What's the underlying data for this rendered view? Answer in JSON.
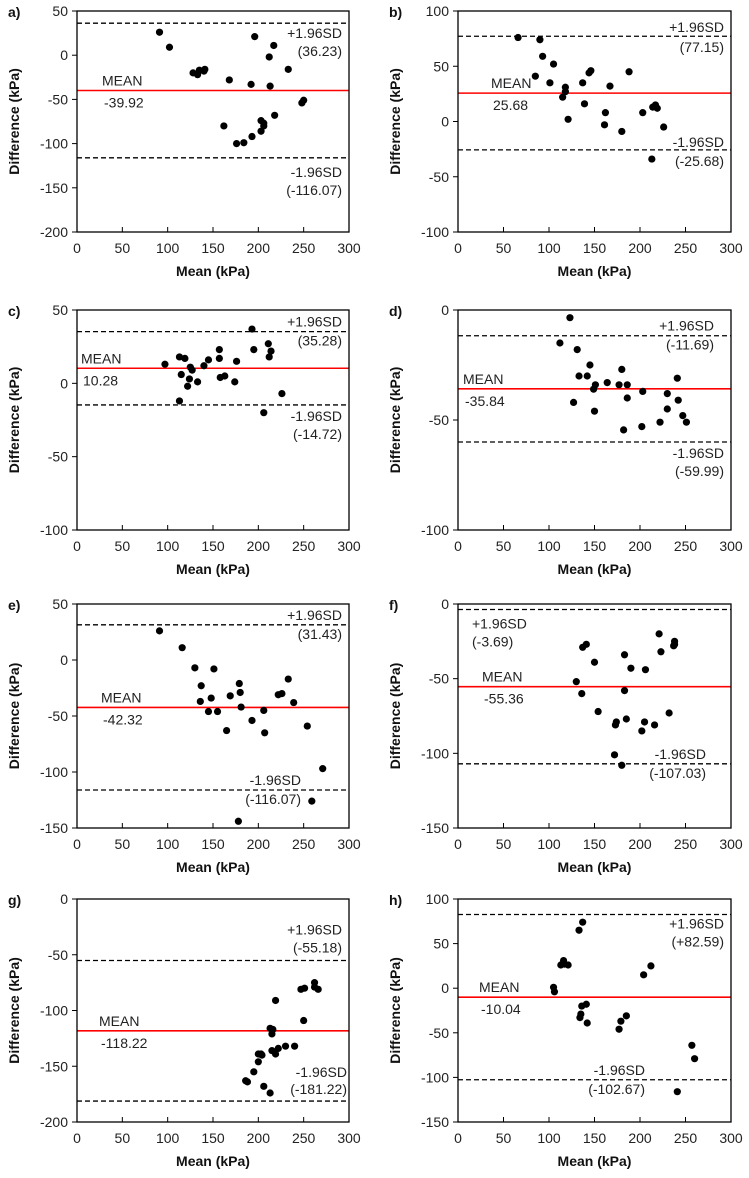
{
  "chart_data": [
    {
      "panel": "a)",
      "type": "scatter",
      "xlabel": "Mean (kPa)",
      "ylabel": "Difference (kPa)",
      "xlim": [
        0,
        300
      ],
      "ylim": [
        -200,
        50
      ],
      "xticks": [
        "0",
        "50",
        "100",
        "150",
        "200",
        "250",
        "300"
      ],
      "yticks": [
        "50",
        "0",
        "-50",
        "-100",
        "-150",
        "-200"
      ],
      "ytick_values": [
        50,
        0,
        -50,
        -100,
        -150,
        -200
      ],
      "mean": -39.92,
      "upper_loa": 36.23,
      "lower_loa": -116.07,
      "mean_label": "MEAN",
      "mean_text": "-39.92",
      "upper_label": "+1.96SD",
      "upper_text": "(36.23)",
      "lower_label": "-1.96SD",
      "lower_text": "(-116.07)",
      "points": [
        [
          91,
          26
        ],
        [
          102,
          9
        ],
        [
          128,
          -20
        ],
        [
          133,
          -22
        ],
        [
          135,
          -17
        ],
        [
          140,
          -18
        ],
        [
          141,
          -16
        ],
        [
          168,
          -28
        ],
        [
          162,
          -80
        ],
        [
          176,
          -100
        ],
        [
          184,
          -99
        ],
        [
          193,
          -92
        ],
        [
          192,
          -33
        ],
        [
          196,
          21
        ],
        [
          203,
          -74
        ],
        [
          203,
          -86
        ],
        [
          206,
          -77
        ],
        [
          206,
          -80
        ],
        [
          212,
          -2
        ],
        [
          213,
          -35
        ],
        [
          217,
          11
        ],
        [
          218,
          -68
        ],
        [
          233,
          -16
        ],
        [
          248,
          -54
        ],
        [
          250,
          -51
        ]
      ]
    },
    {
      "panel": "b)",
      "type": "scatter",
      "xlabel": "Mean (kPa)",
      "ylabel": "Difference (kPa)",
      "xlim": [
        0,
        300
      ],
      "ylim": [
        -100,
        100
      ],
      "xticks": [
        "0",
        "50",
        "100",
        "150",
        "200",
        "250",
        "300"
      ],
      "yticks": [
        "100",
        "50",
        "0",
        "-50",
        "-100"
      ],
      "ytick_values": [
        100,
        50,
        0,
        -50,
        -100
      ],
      "mean": 25.68,
      "upper_loa": 77.15,
      "lower_loa": -25.68,
      "mean_label": "MEAN",
      "mean_text": "25.68",
      "upper_label": "+1.96SD",
      "upper_text": "(77.15)",
      "lower_label": "-1.96SD",
      "lower_text": "(-25.68)",
      "points": [
        [
          66,
          76
        ],
        [
          90,
          74
        ],
        [
          93,
          59
        ],
        [
          85,
          41
        ],
        [
          101,
          35
        ],
        [
          105,
          52
        ],
        [
          115,
          22
        ],
        [
          118,
          31
        ],
        [
          118,
          27
        ],
        [
          121,
          2
        ],
        [
          137,
          35
        ],
        [
          139,
          16
        ],
        [
          144,
          44
        ],
        [
          146,
          46
        ],
        [
          162,
          8
        ],
        [
          161,
          -3
        ],
        [
          167,
          32
        ],
        [
          180,
          -9
        ],
        [
          188,
          45
        ],
        [
          203,
          8
        ],
        [
          214,
          13
        ],
        [
          217,
          15
        ],
        [
          219,
          12
        ],
        [
          213,
          -34
        ],
        [
          226,
          -5
        ]
      ]
    },
    {
      "panel": "c)",
      "type": "scatter",
      "xlabel": "Mean (kPa)",
      "ylabel": "Difference (kPa)",
      "xlim": [
        0,
        300
      ],
      "ylim": [
        -100,
        50
      ],
      "xticks": [
        "0",
        "50",
        "100",
        "150",
        "200",
        "250",
        "300"
      ],
      "yticks": [
        "50",
        "0",
        "-50",
        "-100"
      ],
      "ytick_values": [
        50,
        0,
        -50,
        -100
      ],
      "mean": 10.28,
      "upper_loa": 35.28,
      "lower_loa": -14.72,
      "mean_label": "MEAN",
      "mean_text": "10.28",
      "upper_label": "+1.96SD",
      "upper_text": "(35.28)",
      "lower_label": "-1.96SD",
      "lower_text": "(-14.72)",
      "points": [
        [
          97,
          13
        ],
        [
          113,
          18
        ],
        [
          115,
          6
        ],
        [
          119,
          17
        ],
        [
          113,
          -12
        ],
        [
          122,
          -2
        ],
        [
          124,
          3
        ],
        [
          125,
          11
        ],
        [
          127,
          9
        ],
        [
          133,
          1
        ],
        [
          140,
          12
        ],
        [
          145,
          16
        ],
        [
          157,
          23
        ],
        [
          157,
          17
        ],
        [
          158,
          4
        ],
        [
          163,
          5
        ],
        [
          174,
          1
        ],
        [
          176,
          15
        ],
        [
          193,
          37
        ],
        [
          195,
          23
        ],
        [
          211,
          27
        ],
        [
          212,
          18
        ],
        [
          214,
          22
        ],
        [
          226,
          -7
        ],
        [
          206,
          -20
        ]
      ]
    },
    {
      "panel": "d)",
      "type": "scatter",
      "xlabel": "Mean (kPa)",
      "ylabel": "Difference (kPa)",
      "xlim": [
        0,
        300
      ],
      "ylim": [
        -100,
        0
      ],
      "xticks": [
        "0",
        "50",
        "100",
        "150",
        "200",
        "250",
        "300"
      ],
      "yticks": [
        "0",
        "-50",
        "-100"
      ],
      "ytick_values": [
        0,
        -50,
        -100
      ],
      "mean": -35.84,
      "upper_loa": -11.69,
      "lower_loa": -59.99,
      "mean_label": "MEAN",
      "mean_text": "-35.84",
      "upper_label": "+1.96SD",
      "upper_text": "(-11.69)",
      "lower_label": "-1.96SD",
      "lower_text": "(-59.99)",
      "points": [
        [
          123,
          -3.5
        ],
        [
          112,
          -15
        ],
        [
          131,
          -18
        ],
        [
          133,
          -30
        ],
        [
          142,
          -30
        ],
        [
          145,
          -25
        ],
        [
          127,
          -42
        ],
        [
          149,
          -36
        ],
        [
          151,
          -34
        ],
        [
          150,
          -46
        ],
        [
          164,
          -33
        ],
        [
          177,
          -34
        ],
        [
          180,
          -27
        ],
        [
          186,
          -34
        ],
        [
          186,
          -40
        ],
        [
          182,
          -54.5
        ],
        [
          203,
          -37
        ],
        [
          202,
          -53
        ],
        [
          222,
          -51
        ],
        [
          230,
          -45
        ],
        [
          230,
          -38
        ],
        [
          241,
          -31
        ],
        [
          242,
          -41
        ],
        [
          247,
          -48
        ],
        [
          251,
          -51
        ]
      ]
    },
    {
      "panel": "e)",
      "type": "scatter",
      "xlabel": "Mean (kPa)",
      "ylabel": "Difference (kPa)",
      "xlim": [
        0,
        300
      ],
      "ylim": [
        -150,
        50
      ],
      "xticks": [
        "0",
        "50",
        "100",
        "150",
        "200",
        "250",
        "300"
      ],
      "yticks": [
        "50",
        "0",
        "-50",
        "-100",
        "-150"
      ],
      "ytick_values": [
        50,
        0,
        -50,
        -100,
        -150
      ],
      "mean": -42.32,
      "upper_loa": 31.43,
      "lower_loa": -116.07,
      "mean_label": "MEAN",
      "mean_text": "-42.32",
      "upper_label": "+1.96SD",
      "upper_text": "(31.43)",
      "lower_label": "-1.96SD",
      "lower_text": "(-116.07)",
      "points": [
        [
          91,
          26
        ],
        [
          116,
          11
        ],
        [
          130,
          -7
        ],
        [
          137,
          -23
        ],
        [
          136,
          -37
        ],
        [
          148,
          -34
        ],
        [
          145,
          -46
        ],
        [
          151,
          -8
        ],
        [
          155,
          -46
        ],
        [
          165,
          -63
        ],
        [
          169,
          -32
        ],
        [
          179,
          -21
        ],
        [
          180,
          -29
        ],
        [
          181,
          -42
        ],
        [
          193,
          -54
        ],
        [
          206,
          -45
        ],
        [
          207,
          -65
        ],
        [
          222,
          -31
        ],
        [
          226,
          -30
        ],
        [
          233,
          -17
        ],
        [
          239,
          -38
        ],
        [
          254,
          -59
        ],
        [
          271,
          -97
        ],
        [
          178,
          -144
        ],
        [
          259,
          -126
        ]
      ]
    },
    {
      "panel": "f)",
      "type": "scatter",
      "xlabel": "Mean (kPa)",
      "ylabel": "Difference (kPa)",
      "xlim": [
        0,
        300
      ],
      "ylim": [
        -150,
        0
      ],
      "xticks": [
        "0",
        "50",
        "100",
        "150",
        "200",
        "250",
        "300"
      ],
      "yticks": [
        "0",
        "-50",
        "-100",
        "-150"
      ],
      "ytick_values": [
        0,
        -50,
        -100,
        -150
      ],
      "mean": -55.36,
      "upper_loa": -3.69,
      "lower_loa": -107.03,
      "mean_label": "MEAN",
      "mean_text": "-55.36",
      "upper_label": "+1.96SD",
      "upper_text": "(-3.69)",
      "lower_label": "-1.96SD",
      "lower_text": "(-107.03)",
      "points": [
        [
          130,
          -52
        ],
        [
          136,
          -60
        ],
        [
          137,
          -29
        ],
        [
          141,
          -27
        ],
        [
          150,
          -39
        ],
        [
          154,
          -72
        ],
        [
          173,
          -81
        ],
        [
          174,
          -79
        ],
        [
          172,
          -101
        ],
        [
          180,
          -108
        ],
        [
          183,
          -34
        ],
        [
          183,
          -58
        ],
        [
          185,
          -77
        ],
        [
          190,
          -43
        ],
        [
          202,
          -85
        ],
        [
          205,
          -79
        ],
        [
          206,
          -44
        ],
        [
          216,
          -81
        ],
        [
          221,
          -20
        ],
        [
          223,
          -32
        ],
        [
          232,
          -73
        ],
        [
          237,
          -28
        ],
        [
          238,
          -25
        ],
        [
          238,
          -27
        ]
      ]
    },
    {
      "panel": "g)",
      "type": "scatter",
      "xlabel": "Mean (kPa)",
      "ylabel": "Difference (kPa)",
      "xlim": [
        0,
        300
      ],
      "ylim": [
        -200,
        0
      ],
      "xticks": [
        "0",
        "50",
        "100",
        "150",
        "200",
        "250",
        "300"
      ],
      "yticks": [
        "0",
        "-50",
        "-100",
        "-150",
        "-200"
      ],
      "ytick_values": [
        0,
        -50,
        -100,
        -150,
        -200
      ],
      "mean": -118.22,
      "upper_loa": -55.18,
      "lower_loa": -181.22,
      "mean_label": "MEAN",
      "mean_text": "-118.22",
      "upper_label": "+1.96SD",
      "upper_text": "(-55.18)",
      "lower_label": "-1.96SD",
      "lower_text": "(-181.22)",
      "points": [
        [
          186,
          -163
        ],
        [
          188,
          -164
        ],
        [
          195,
          -155
        ],
        [
          200,
          -146
        ],
        [
          200,
          -139
        ],
        [
          203,
          -139
        ],
        [
          204,
          -140
        ],
        [
          206,
          -168
        ],
        [
          213,
          -174
        ],
        [
          215,
          -121
        ],
        [
          215,
          -136
        ],
        [
          213,
          -116
        ],
        [
          216,
          -117
        ],
        [
          219,
          -91
        ],
        [
          219,
          -139
        ],
        [
          222,
          -134
        ],
        [
          230,
          -132
        ],
        [
          240,
          -132
        ],
        [
          250,
          -109
        ],
        [
          247,
          -81
        ],
        [
          251,
          -80
        ],
        [
          262,
          -79
        ],
        [
          262,
          -75
        ],
        [
          266,
          -81
        ]
      ]
    },
    {
      "panel": "h)",
      "type": "scatter",
      "xlabel": "Mean (kPa)",
      "ylabel": "Difference (kPa)",
      "xlim": [
        0,
        300
      ],
      "ylim": [
        -150,
        100
      ],
      "xticks": [
        "0",
        "50",
        "100",
        "150",
        "200",
        "250",
        "300"
      ],
      "yticks": [
        "100",
        "50",
        "0",
        "-50",
        "-100",
        "-150"
      ],
      "ytick_values": [
        100,
        50,
        0,
        -50,
        -100,
        -150
      ],
      "mean": -10.04,
      "upper_loa": 82.59,
      "lower_loa": -102.67,
      "mean_label": "MEAN",
      "mean_text": "-10.04",
      "upper_label": "+1.96SD",
      "upper_text": "(+82.59)",
      "lower_label": "-1.96SD",
      "lower_text": "(-102.67)",
      "points": [
        [
          105,
          1
        ],
        [
          106,
          -4
        ],
        [
          113,
          26
        ],
        [
          116,
          31
        ],
        [
          117,
          27
        ],
        [
          121,
          26
        ],
        [
          133,
          65
        ],
        [
          137,
          74
        ],
        [
          136,
          -20
        ],
        [
          135,
          -29
        ],
        [
          134,
          -33
        ],
        [
          141,
          -18
        ],
        [
          142,
          -39
        ],
        [
          177,
          -46
        ],
        [
          179,
          -37
        ],
        [
          185,
          -31
        ],
        [
          204,
          15
        ],
        [
          212,
          25
        ],
        [
          241,
          -116
        ],
        [
          257,
          -64
        ],
        [
          260,
          -79
        ]
      ]
    }
  ],
  "colors": {
    "mean_line": "#ff0000",
    "loa_line": "#000000",
    "points": "#000000"
  }
}
